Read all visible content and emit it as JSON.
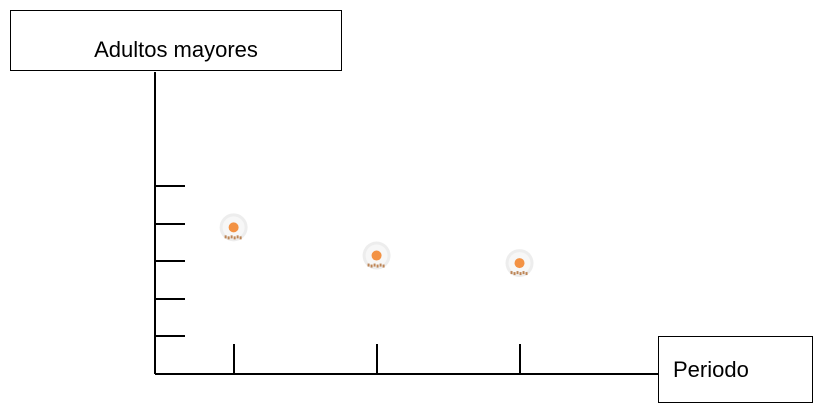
{
  "chart_data": {
    "type": "scatter",
    "ylabel": "Adultos mayores",
    "xlabel": "Periodo",
    "x": [
      1,
      2,
      3
    ],
    "y": [
      3.9,
      3.15,
      2.95
    ],
    "xlim": [
      0.45,
      3.5
    ],
    "ylim": [
      0,
      5
    ],
    "y_ticks": 5,
    "grid": false,
    "colors": {
      "axis": "#000000",
      "point_fill": "#f39244",
      "point_halo": "#ebebeb",
      "point_speckle": "#b06a30"
    }
  }
}
